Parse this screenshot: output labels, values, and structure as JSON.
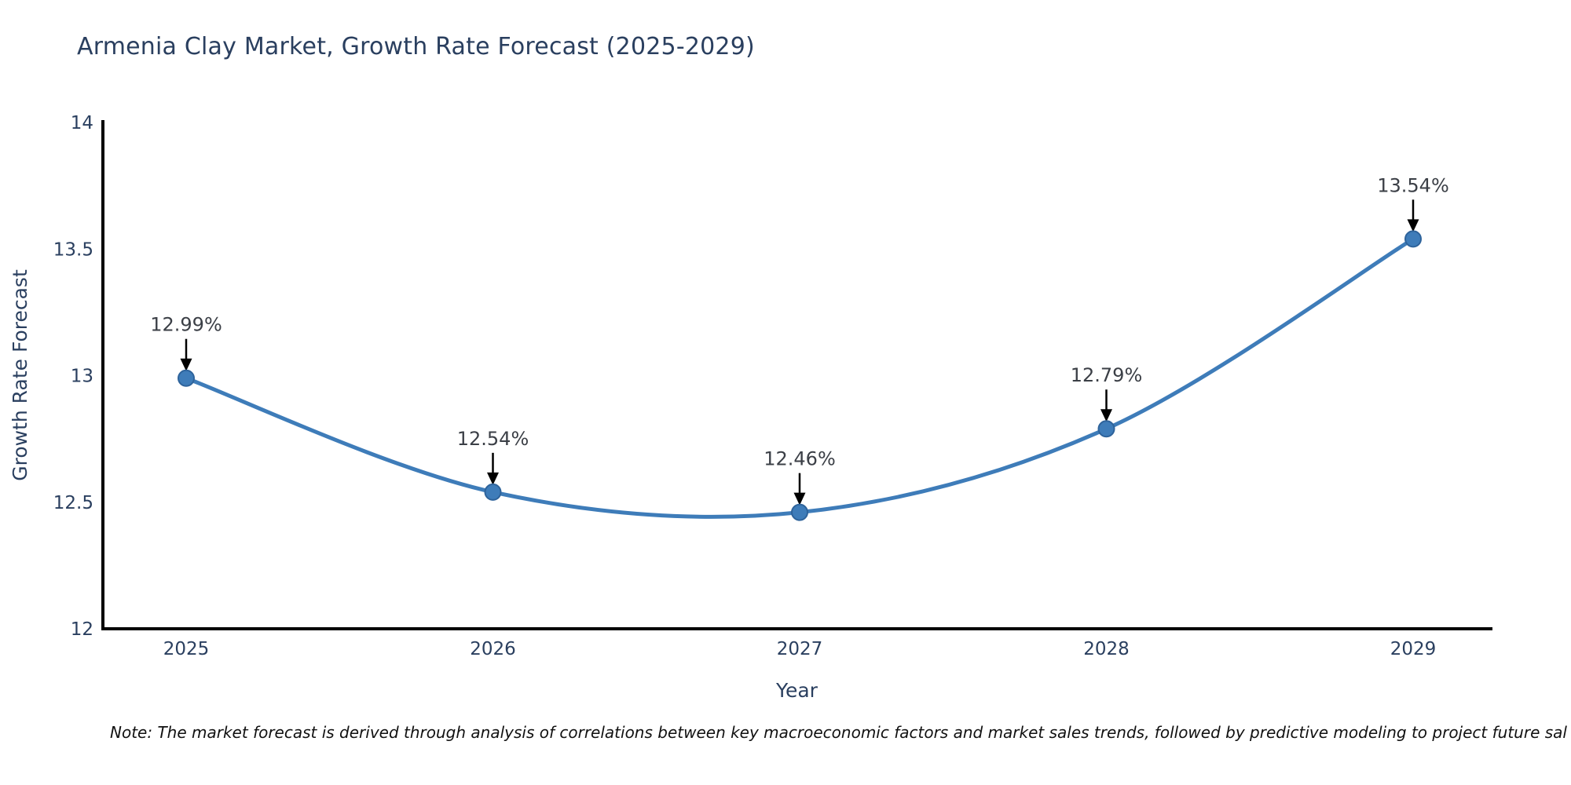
{
  "chart_data": {
    "type": "line",
    "title": "Armenia Clay Market, Growth Rate Forecast (2025-2029)",
    "xlabel": "Year",
    "ylabel": "Growth Rate Forecast",
    "categories": [
      "2025",
      "2026",
      "2027",
      "2028",
      "2029"
    ],
    "values": [
      12.99,
      12.54,
      12.46,
      12.79,
      13.54
    ],
    "point_labels": [
      "12.99%",
      "12.54%",
      "12.46%",
      "12.79%",
      "13.54%"
    ],
    "ylim": [
      12,
      14
    ],
    "yticks": [
      12,
      12.5,
      13,
      13.5,
      14
    ],
    "ytick_labels": [
      "12",
      "12.5",
      "13",
      "13.5",
      "14"
    ],
    "grid": false,
    "legend": "none",
    "line_shape": "spline",
    "annotation_arrow": "down-arrow",
    "colors": {
      "line": "#3e7cb9",
      "marker_fill": "#3e7cb9",
      "marker_edge": "#2e639b",
      "axis_line": "#000000",
      "title_text": "#2a3f5f",
      "tick_text": "#2a3f5f",
      "axis_title_text": "#2a3f5f",
      "annotation_text": "#3b3f46",
      "arrow": "#000000",
      "background": "#ffffff"
    }
  },
  "note": "Note: The market forecast is derived through analysis of correlations between key macroeconomic factors and market sales trends, followed by predictive modeling to project future sal"
}
